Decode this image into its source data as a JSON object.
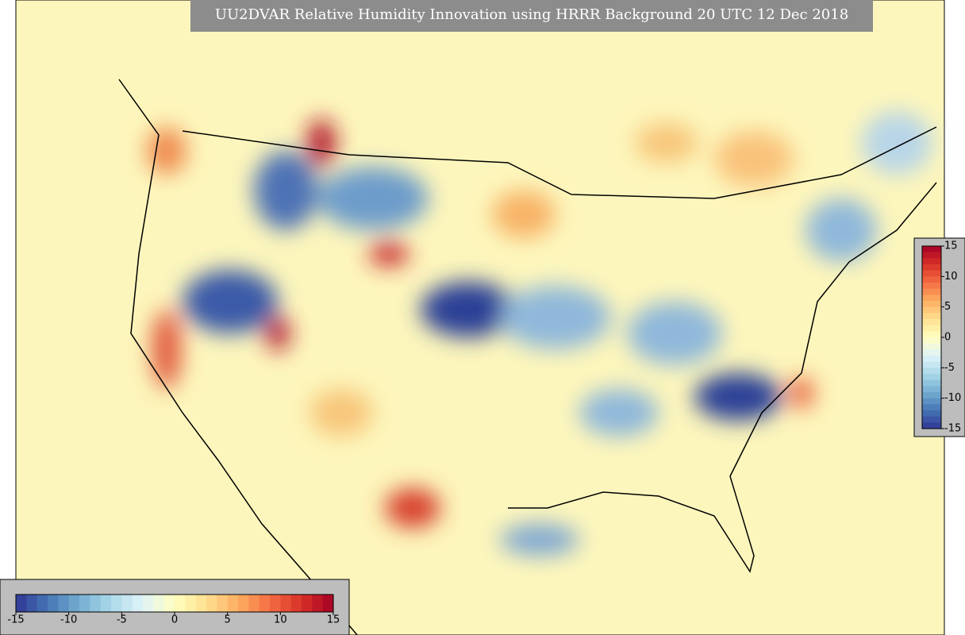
{
  "title": "UU2DVAR Relative Humidity Innovation using HRRR Background 20 UTC 12 Dec 2018",
  "colorbar_horizontal": {
    "range": [
      -15,
      15
    ],
    "ticks": [
      -15,
      -10,
      -5,
      0,
      5,
      10,
      15
    ]
  },
  "colorbar_vertical": {
    "range": [
      -15,
      15
    ],
    "ticks": [
      15,
      10,
      5,
      0,
      -5,
      -10,
      -15
    ]
  }
}
